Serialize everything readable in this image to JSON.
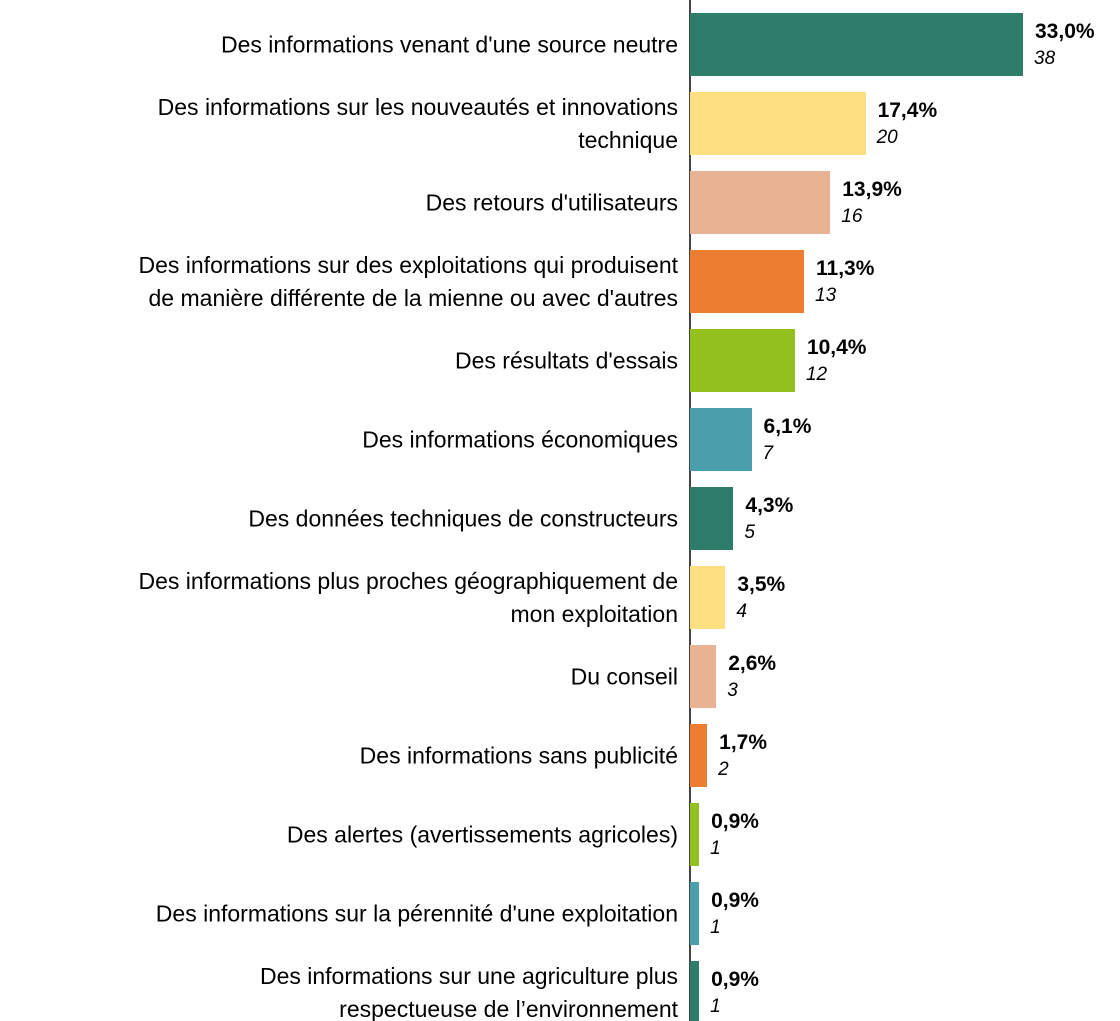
{
  "chart_data": {
    "type": "bar",
    "orientation": "horizontal",
    "categories": [
      "Des informations venant d'une source neutre",
      "Des informations sur les nouveautés et innovations\ntechnique",
      "Des retours d'utilisateurs",
      "Des informations sur des exploitations qui produisent\nde manière différente de la mienne ou avec d'autres",
      "Des résultats d'essais",
      "Des informations économiques",
      "Des données techniques de constructeurs",
      "Des informations plus proches géographiquement de\nmon exploitation",
      "Du conseil",
      "Des informations sans publicité",
      "Des alertes (avertissements agricoles)",
      "Des informations sur la pérennité d'une exploitation",
      "Des informations sur une agriculture plus\nrespectueuse de l’environnement"
    ],
    "values": [
      33.0,
      17.4,
      13.9,
      11.3,
      10.4,
      6.1,
      4.3,
      3.5,
      2.6,
      1.7,
      0.9,
      0.9,
      0.9
    ],
    "value_labels": [
      "33,0%",
      "17,4%",
      "13,9%",
      "11,3%",
      "10,4%",
      "6,1%",
      "4,3%",
      "3,5%",
      "2,6%",
      "1,7%",
      "0,9%",
      "0,9%",
      "0,9%"
    ],
    "counts": [
      38,
      20,
      16,
      13,
      12,
      7,
      5,
      4,
      3,
      2,
      1,
      1,
      1
    ],
    "colors": [
      "#2e7d6b",
      "#fddf80",
      "#e8b293",
      "#ed7d31",
      "#93c01f",
      "#4b9fac",
      "#2e7d6b",
      "#fddf80",
      "#e8b293",
      "#ed7d31",
      "#93c01f",
      "#4b9fac",
      "#2e7d6b"
    ]
  }
}
